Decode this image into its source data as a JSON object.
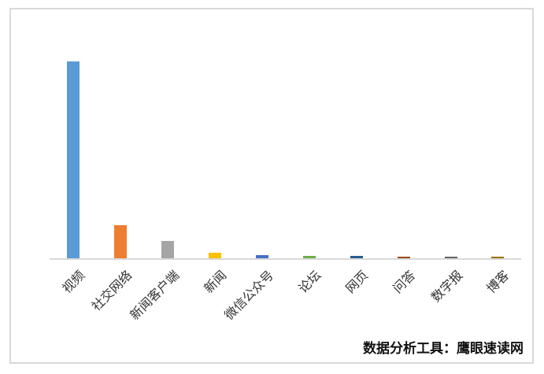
{
  "chart_data": {
    "type": "bar",
    "title": "",
    "xlabel": "",
    "ylabel": "",
    "categories": [
      "视频",
      "社交网络",
      "新闻客户端",
      "新闻",
      "微信公众号",
      "论坛",
      "网页",
      "问答",
      "数字报",
      "博客"
    ],
    "values": [
      74,
      12.5,
      6.5,
      2,
      1.2,
      0.8,
      0.9,
      0.6,
      0.6,
      0.7
    ],
    "values_note": "estimated percentages; chart shows no value axis, tick labels or gridlines",
    "series_colors": [
      "#5B9BD5",
      "#ED7D31",
      "#A5A5A5",
      "#FFC000",
      "#4472C4",
      "#70AD47",
      "#255E91",
      "#9E480E",
      "#636363",
      "#997300"
    ],
    "ylim": [
      0,
      80
    ],
    "grid": false,
    "legend": false,
    "label_rotation_deg": 45,
    "axis_line_color": "#D9D9D9"
  },
  "caption": {
    "text": "数据分析工具：鹰眼速读网"
  },
  "frame": {
    "border_color": "#D9D9D9"
  }
}
